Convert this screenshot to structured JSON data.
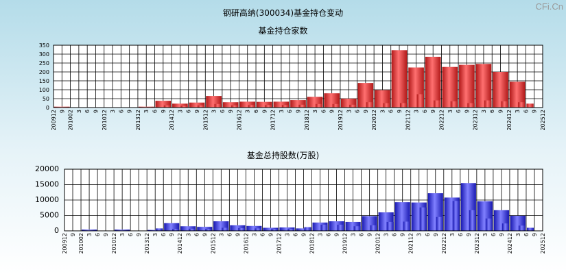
{
  "page_title": "钢研高纳(300034)基金持仓变动",
  "watermark": "CFi.Cn",
  "x_tick_labels": [
    "200912",
    "9",
    "201002",
    "3",
    "6",
    "9",
    "201012",
    "3",
    "6",
    "9",
    "201312",
    "3",
    "6",
    "9",
    "201412",
    "3",
    "6",
    "9",
    "201512",
    "3",
    "6",
    "9",
    "201612",
    "3",
    "6",
    "9",
    "201712",
    "3",
    "6",
    "9",
    "201812",
    "3",
    "6",
    "9",
    "201912",
    "3",
    "6",
    "9",
    "202012",
    "3",
    "6",
    "9",
    "202112",
    "3",
    "6",
    "9",
    "202212",
    "3",
    "6",
    "9",
    "202312",
    "3",
    "6",
    "9",
    "202412",
    "3",
    "6",
    "9",
    "202512"
  ],
  "colors": {
    "top_bar": "#e02424",
    "bottom_bar": "#2020e0",
    "grid": "#000000",
    "axis": "#000000"
  },
  "chart_data": [
    {
      "type": "bar",
      "title": "基金持仓家数",
      "ylim": [
        0,
        350
      ],
      "yticks": [
        0,
        50,
        100,
        150,
        200,
        250,
        300,
        350
      ],
      "ytick_labels": [
        "0",
        "50",
        "100",
        "150",
        "200",
        "250",
        "300",
        "350"
      ],
      "major": [
        5,
        2,
        2,
        2,
        2,
        5,
        38,
        22,
        28,
        65,
        30,
        33,
        32,
        33,
        42,
        60,
        80,
        50,
        138,
        98,
        322,
        225,
        285,
        228,
        240,
        245,
        200,
        145,
        22
      ],
      "minor": [
        2,
        1,
        1,
        1,
        1,
        3,
        12,
        10,
        12,
        20,
        12,
        14,
        14,
        14,
        16,
        20,
        20,
        16,
        30,
        25,
        25,
        75,
        40,
        35,
        25,
        40,
        35,
        30
      ]
    },
    {
      "type": "bar",
      "title": "基金总持股数(万股)",
      "ylim": [
        0,
        20000
      ],
      "yticks": [
        0,
        5000,
        10000,
        15000,
        20000
      ],
      "ytick_labels": [
        "0",
        "5000",
        "10000",
        "15000",
        "20000"
      ],
      "major": [
        100,
        400,
        100,
        400,
        100,
        300,
        2500,
        1500,
        1300,
        3100,
        1800,
        1600,
        1000,
        1100,
        800,
        2700,
        3100,
        2900,
        4800,
        6000,
        9300,
        9200,
        12200,
        10800,
        15500,
        9600,
        6700,
        4900,
        1000
      ],
      "minor": [
        50,
        100,
        50,
        100,
        50,
        800,
        600,
        700,
        600,
        1000,
        900,
        800,
        600,
        600,
        1200,
        2000,
        2000,
        1500,
        1800,
        2900,
        3000,
        7600,
        4500,
        9700,
        6700,
        4000,
        2400,
        1700
      ]
    }
  ]
}
